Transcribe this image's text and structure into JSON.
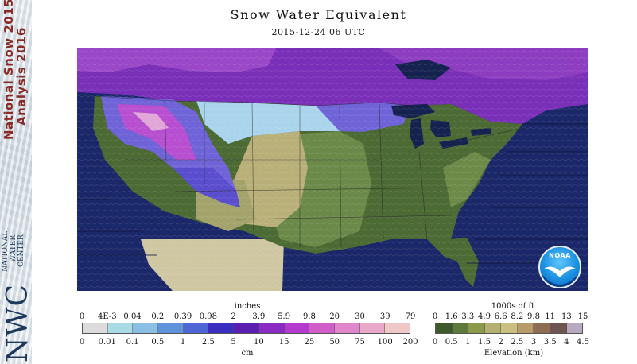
{
  "header": {
    "title": "Snow Water Equivalent",
    "timestamp": "2015-12-24 06 UTC"
  },
  "sidebar": {
    "analysis_title": "National Snow 2015",
    "analysis_subtitle": "Analysis 2016",
    "org_abbrev": "NWC",
    "org_line1": "NATIONAL",
    "org_line2": "WATER",
    "org_line3": "CENTER"
  },
  "map": {
    "logo_text": "NOAA",
    "colors": {
      "ocean": "#1a2869",
      "canada": "#7a2fb8",
      "no_snow_low": "#4c6a34",
      "no_snow_mid": "#6b8a4a",
      "high_plains": "#b9b079",
      "mexico": "#cfc6a2",
      "snow_light": "#a9d4ec",
      "snow_mid": "#6f63d8",
      "snow_deep": "#b84fd0",
      "snow_max": "#e0a6d8",
      "lakes": "#15224f"
    }
  },
  "swe_legend": {
    "top_unit": "inches",
    "bottom_unit": "cm",
    "inch_ticks": [
      "0",
      "4E-3",
      "0.04",
      "0.2",
      "0.39",
      "0.98",
      "2",
      "3.9",
      "5.9",
      "9.8",
      "20",
      "30",
      "39",
      "79"
    ],
    "cm_ticks": [
      "0",
      "0.01",
      "0.1",
      "0.5",
      "1",
      "2.5",
      "5",
      "10",
      "15",
      "25",
      "50",
      "75",
      "100",
      "200"
    ],
    "colors": [
      "#dcdcdc",
      "#a9dbe6",
      "#88bfe3",
      "#5f93dc",
      "#4f66d6",
      "#3a2fc0",
      "#5a1fb0",
      "#8a2cc4",
      "#b43ad0",
      "#d05ec9",
      "#df86cd",
      "#e8a8c8",
      "#f0c8c8"
    ]
  },
  "elevation_legend": {
    "top_unit": "1000s of ft",
    "bottom_unit": "Elevation (km)",
    "ft_ticks": [
      "0",
      "1.6",
      "3.3",
      "4.9",
      "6.6",
      "8.2",
      "9.8",
      "11",
      "13",
      "15"
    ],
    "km_ticks": [
      "0",
      "0.5",
      "1",
      "1.5",
      "2",
      "2.5",
      "3",
      "3.5",
      "4",
      "4.5"
    ],
    "colors": [
      "#3f5a2a",
      "#5e7a3a",
      "#8b9a4a",
      "#b3b070",
      "#cbbf80",
      "#b99a6a",
      "#8e6e52",
      "#6f5550",
      "#b8a8c0"
    ]
  }
}
